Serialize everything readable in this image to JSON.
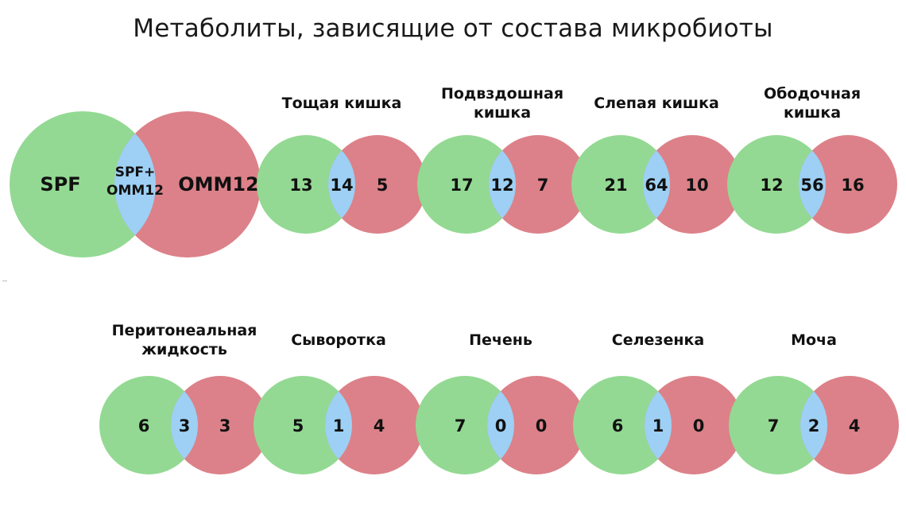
{
  "title": "Метаболиты, зависящие от состава микробиоты",
  "colors": {
    "spf": "#93d993",
    "omm12": "#dc8189",
    "overlap": "#9dd0f4"
  },
  "legend": {
    "left": "SPF",
    "center_line1": "SPF+",
    "center_line2": "OMM12",
    "right": "OMM12"
  },
  "organs": [
    {
      "label": [
        "Тощая кишка"
      ],
      "spf_only": 13,
      "both": 14,
      "omm12_only": 5
    },
    {
      "label": [
        "Подвздошная",
        "кишка"
      ],
      "spf_only": 17,
      "both": 12,
      "omm12_only": 7
    },
    {
      "label": [
        "Слепая кишка"
      ],
      "spf_only": 21,
      "both": 64,
      "omm12_only": 10
    },
    {
      "label": [
        "Ободочная",
        "кишка"
      ],
      "spf_only": 12,
      "both": 56,
      "omm12_only": 16
    },
    {
      "label": [
        "Перитонеальная",
        "жидкость"
      ],
      "spf_only": 6,
      "both": 3,
      "omm12_only": 3
    },
    {
      "label": [
        "Сыворотка"
      ],
      "spf_only": 5,
      "both": 1,
      "omm12_only": 4
    },
    {
      "label": [
        "Печень"
      ],
      "spf_only": 7,
      "both": 0,
      "omm12_only": 0
    },
    {
      "label": [
        "Селезенка"
      ],
      "spf_only": 6,
      "both": 1,
      "omm12_only": 0
    },
    {
      "label": [
        "Моча"
      ],
      "spf_only": 7,
      "both": 2,
      "omm12_only": 4
    }
  ]
}
